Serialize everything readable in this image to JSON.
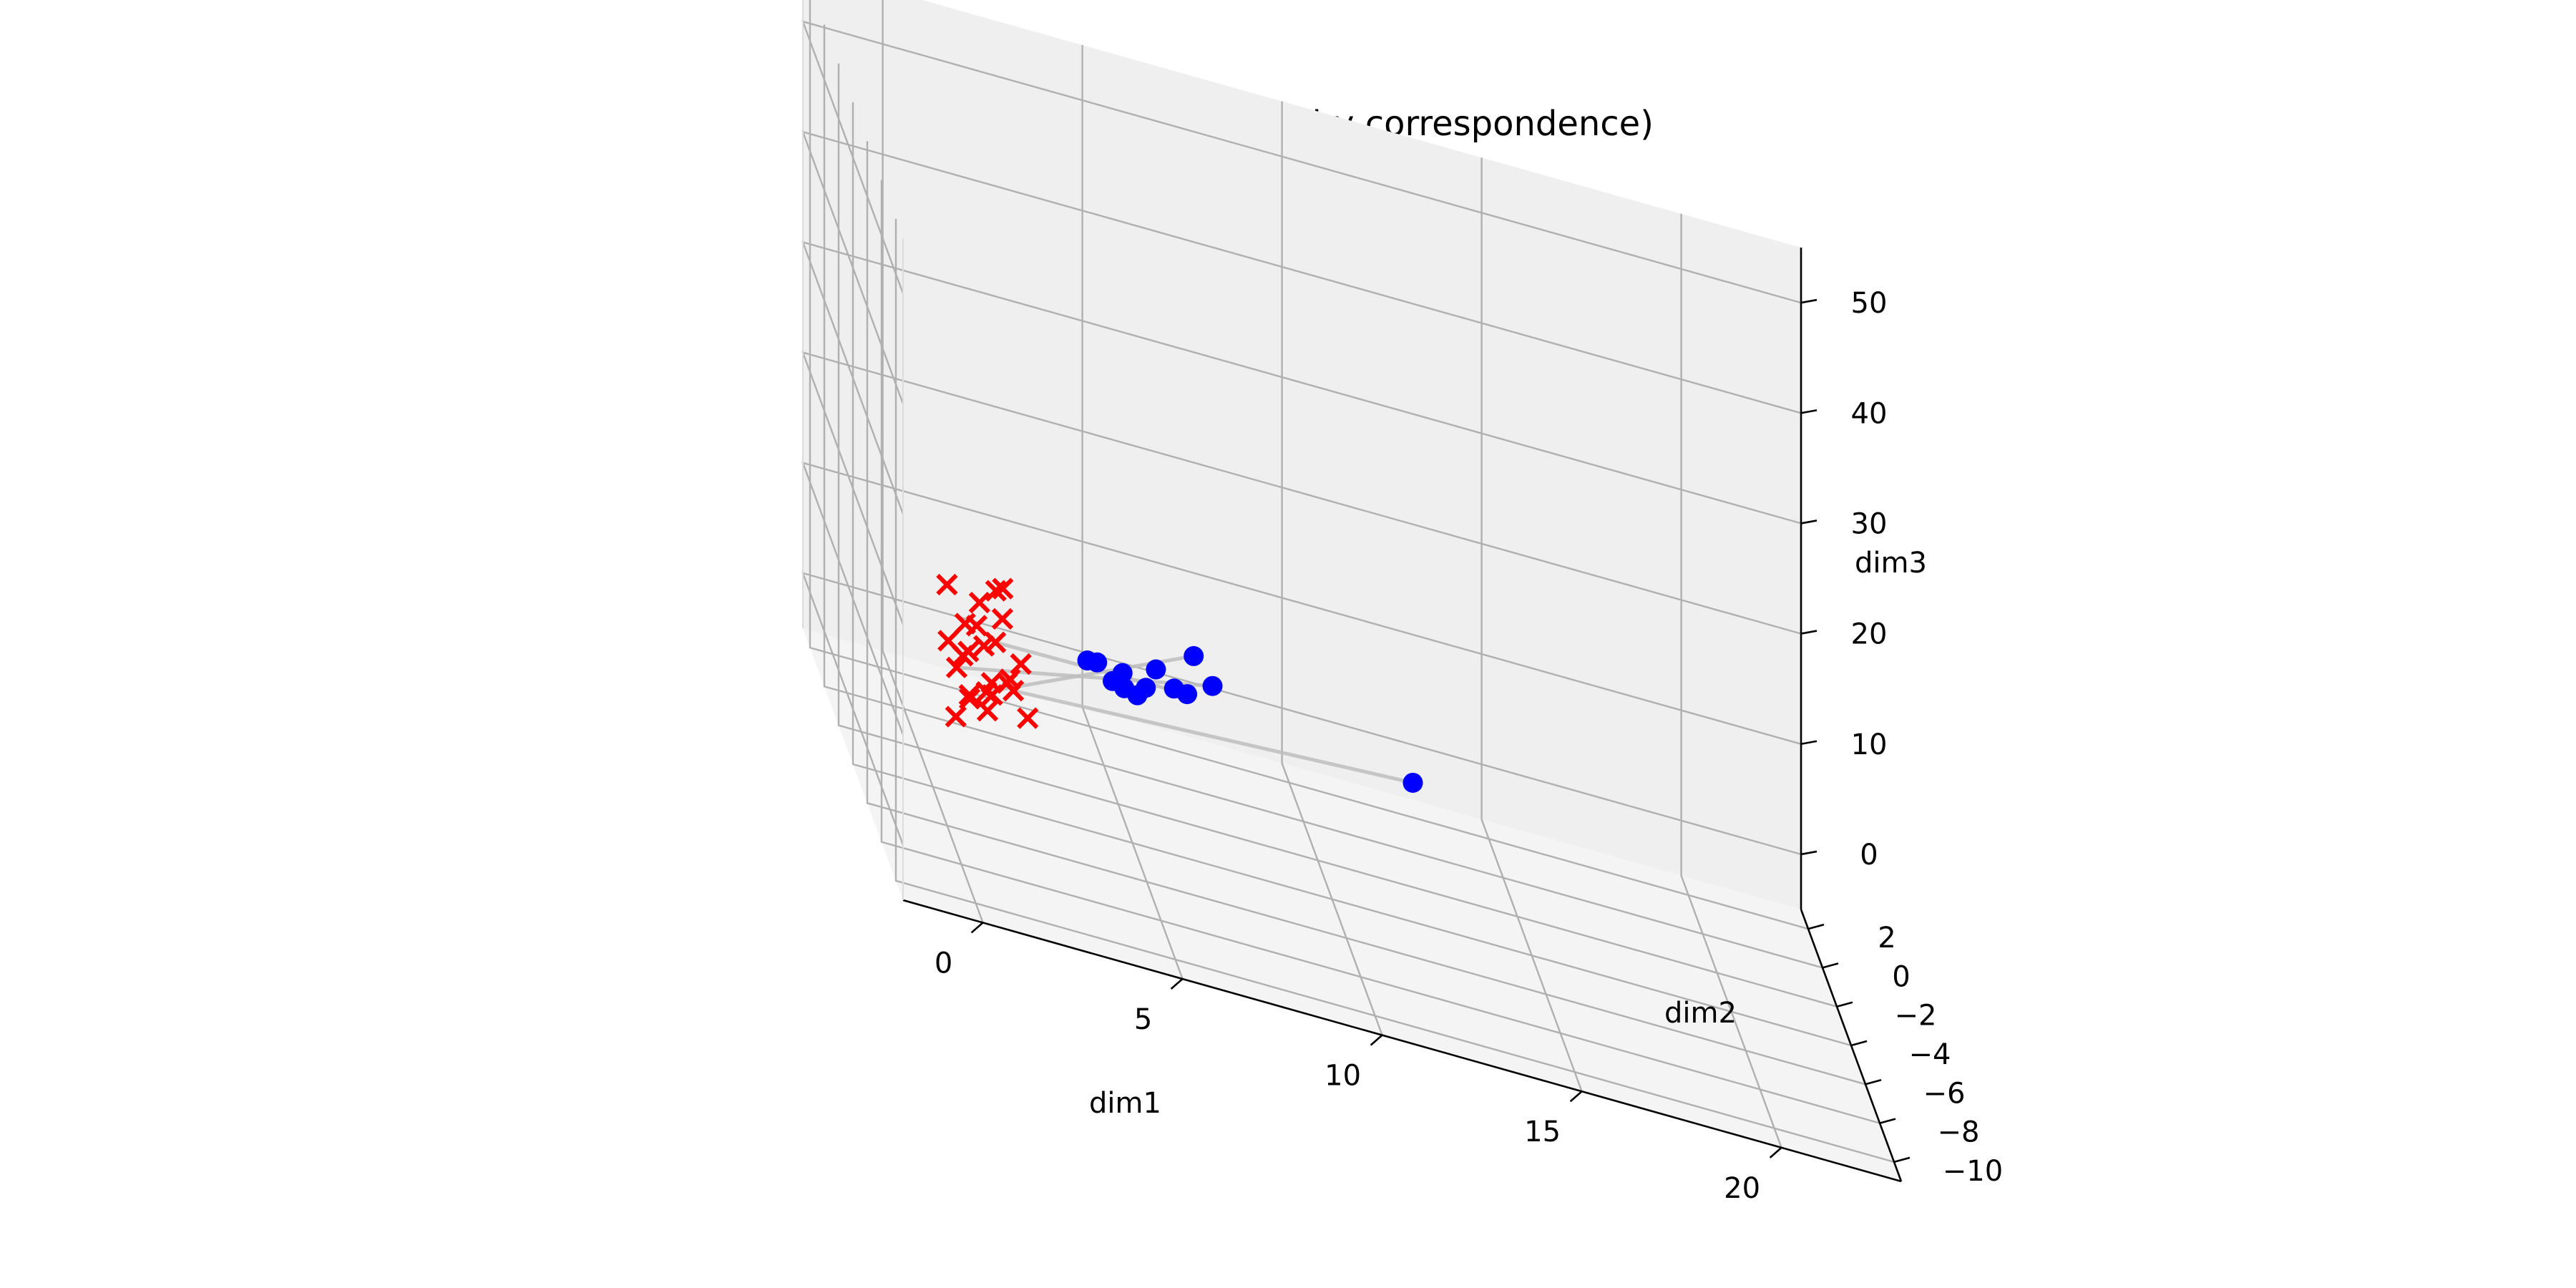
{
  "chart_data": {
    "type": "scatter",
    "projection": "3d",
    "title": "SVD vs VAE (color by correspondence)",
    "xlabel": "dim1",
    "ylabel": "dim2",
    "zlabel": "dim3",
    "xticks": [
      0,
      5,
      10,
      15,
      20
    ],
    "yticks": [
      2,
      0,
      -2,
      -4,
      -6,
      -8,
      -10
    ],
    "zticks": [
      0,
      10,
      20,
      30,
      40,
      50
    ],
    "tick_labels": {
      "x": [
        "0",
        "5",
        "10",
        "15",
        "20"
      ],
      "y": [
        "2",
        "0",
        "−2",
        "−4",
        "−6",
        "−8",
        "−10"
      ],
      "z": [
        "0",
        "10",
        "20",
        "30",
        "40",
        "50"
      ]
    },
    "grid": true,
    "legend": "none",
    "colors": {
      "series_red": "#ff0000",
      "series_blue": "#0000ff",
      "connector": "#bdbdbd",
      "pane_left": "#f2f2f2",
      "pane_right": "#efefef",
      "pane_bottom": "#f4f4f4",
      "grid": "#b0b0b0"
    },
    "series": [
      {
        "marker": "x",
        "color": "#ff0000",
        "points": [
          [
            1.6,
            -1.2,
            6.3
          ],
          [
            2.3,
            -0.9,
            7.1
          ],
          [
            1.4,
            -0.7,
            5.4
          ],
          [
            2.0,
            -1.6,
            5.9
          ],
          [
            1.8,
            -1.1,
            4.5
          ],
          [
            2.6,
            -1.8,
            4.9
          ],
          [
            1.2,
            -1.5,
            3.7
          ],
          [
            2.2,
            -2.1,
            3.3
          ],
          [
            1.5,
            -0.6,
            2.8
          ],
          [
            2.4,
            -1.4,
            2.6
          ],
          [
            1.7,
            -2.0,
            1.8
          ],
          [
            1.1,
            -1.2,
            2.0
          ],
          [
            2.5,
            -1.3,
            1.5
          ],
          [
            1.9,
            -1.7,
            1.2
          ],
          [
            1.3,
            -1.9,
            0.6
          ],
          [
            2.1,
            -0.5,
            0.4
          ],
          [
            0.9,
            -2.2,
            -0.9
          ],
          [
            2.7,
            -2.2,
            0.8
          ],
          [
            1.0,
            -0.4,
            8.0
          ],
          [
            1.6,
            -1.6,
            9.1
          ],
          [
            2.1,
            -1.1,
            9.8
          ],
          [
            1.8,
            -1.6,
            -0.5
          ],
          [
            1.4,
            -1.3,
            0.0
          ],
          [
            2.2,
            -1.5,
            10.8
          ],
          [
            0.8,
            -1.7,
            5.0
          ]
        ]
      },
      {
        "marker": "o",
        "color": "#0000ff",
        "points": [
          [
            4.3,
            -1.6,
            6.6
          ],
          [
            5.2,
            -1.5,
            6.2
          ],
          [
            6.0,
            -1.7,
            7.7
          ],
          [
            6.4,
            -2.0,
            6.9
          ],
          [
            4.9,
            -1.8,
            5.7
          ],
          [
            5.8,
            -1.4,
            5.3
          ],
          [
            4.6,
            -1.3,
            6.2
          ],
          [
            5.5,
            -1.9,
            5.2
          ],
          [
            6.8,
            -1.6,
            6.1
          ],
          [
            5.3,
            -1.2,
            4.4
          ],
          [
            7.0,
            -1.4,
            9.4
          ],
          [
            7.4,
            -1.8,
            7.8
          ],
          [
            12.4,
            -1.9,
            4.3
          ]
        ]
      }
    ],
    "connections": [
      [
        10,
        10
      ],
      [
        11,
        11
      ],
      [
        12,
        12
      ],
      [
        3,
        8
      ]
    ]
  }
}
